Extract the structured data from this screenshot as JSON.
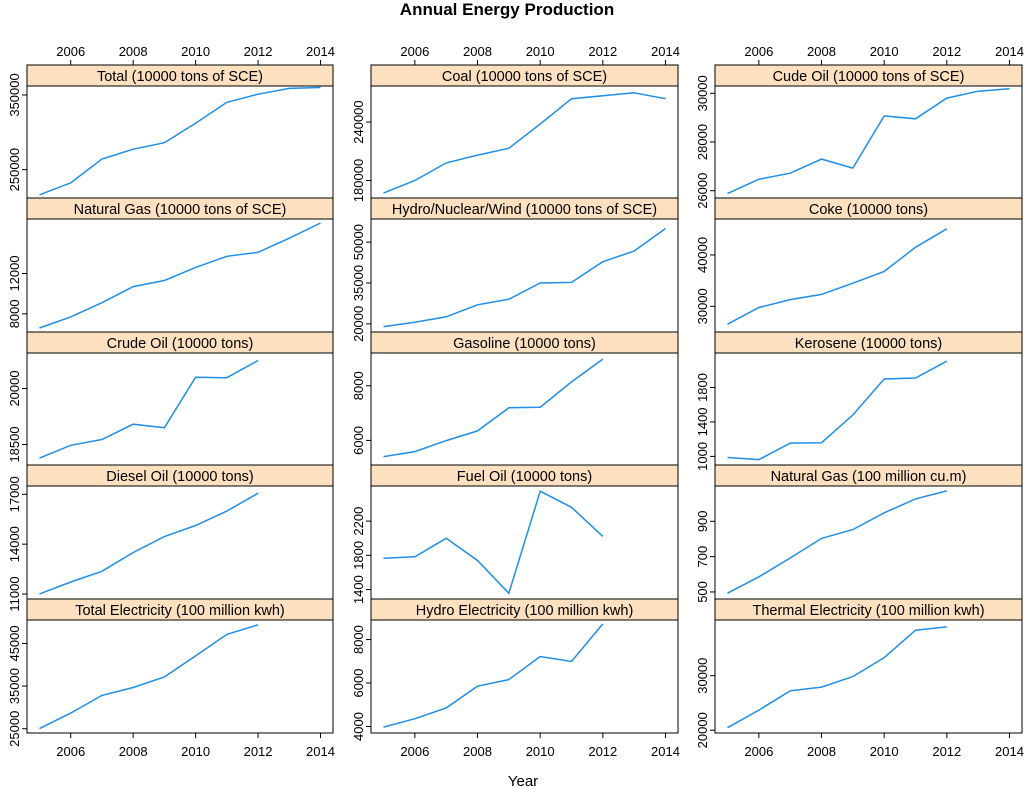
{
  "title": "Annual Energy Production",
  "xlabel": "Year",
  "colors": {
    "line": "#1f8ee6",
    "strip": "#fde0c0",
    "frame": "#000000"
  },
  "x_ticks": [
    2006,
    2008,
    2010,
    2012,
    2014
  ],
  "chart_data": [
    {
      "type": "line",
      "name": "Total (10000 tons of SCE)",
      "x": [
        2005,
        2006,
        2007,
        2008,
        2009,
        2010,
        2011,
        2012,
        2013,
        2014
      ],
      "y": [
        216219,
        232167,
        264173,
        277419,
        286092,
        312125,
        340178,
        351041,
        358784,
        360000
      ],
      "ylim": [
        212000,
        362000
      ],
      "yticks": [
        250000,
        350000
      ]
    },
    {
      "type": "line",
      "name": "Coal (10000 tons of SCE)",
      "x": [
        2005,
        2006,
        2007,
        2008,
        2009,
        2010,
        2011,
        2012,
        2013,
        2014
      ],
      "y": [
        167000,
        180000,
        198000,
        206000,
        213000,
        238000,
        264000,
        267000,
        270000,
        264000
      ],
      "ylim": [
        162000,
        277000
      ],
      "yticks": [
        180000,
        240000
      ]
    },
    {
      "type": "line",
      "name": "Cude Oil (10000 tons of SCE)",
      "x": [
        2005,
        2006,
        2007,
        2008,
        2009,
        2010,
        2011,
        2012,
        2013,
        2014
      ],
      "y": [
        25881,
        26472,
        26720,
        27297,
        26929,
        29071,
        28951,
        29804,
        30087,
        30186
      ],
      "ylim": [
        25700,
        30300
      ],
      "yticks": [
        26000,
        28000,
        30000
      ]
    },
    {
      "type": "line",
      "name": "Natural Gas (10000 tons of SCE)",
      "x": [
        2005,
        2006,
        2007,
        2008,
        2009,
        2010,
        2011,
        2012,
        2013,
        2014
      ],
      "y": [
        6600,
        7700,
        9100,
        10700,
        11300,
        12600,
        13700,
        14100,
        15500,
        17000
      ],
      "ylim": [
        6200,
        17400
      ],
      "yticks": [
        8000,
        12000
      ]
    },
    {
      "type": "line",
      "name": "Hydro/Nuclear/Wind (10000 tons of SCE)",
      "x": [
        2005,
        2006,
        2007,
        2008,
        2009,
        2010,
        2011,
        2012,
        2013,
        2014
      ],
      "y": [
        19000,
        20600,
        22600,
        27000,
        29000,
        35000,
        35200,
        42800,
        46700,
        55000
      ],
      "ylim": [
        17000,
        58500
      ],
      "yticks": [
        20000,
        35000,
        50000
      ]
    },
    {
      "type": "line",
      "name": "Coke (10000 tons)",
      "x": [
        2005,
        2006,
        2007,
        2008,
        2009,
        2010,
        2011,
        2012
      ],
      "y": [
        26512,
        29768,
        31314,
        32314,
        34500,
        36800,
        41500,
        45100
      ],
      "ylim": [
        25000,
        47000
      ],
      "yticks": [
        30000,
        40000
      ]
    },
    {
      "type": "line",
      "name": "Crude Oil (10000 tons)",
      "x": [
        2005,
        2006,
        2007,
        2008,
        2009,
        2010,
        2011,
        2012
      ],
      "y": [
        18135,
        18477,
        18632,
        19044,
        18949,
        20301,
        20288,
        20748
      ],
      "ylim": [
        17950,
        20950
      ],
      "yticks": [
        18500,
        20000
      ]
    },
    {
      "type": "line",
      "name": "Gasoline (10000 tons)",
      "x": [
        2005,
        2006,
        2007,
        2008,
        2009,
        2010,
        2011,
        2012
      ],
      "y": [
        5409,
        5591,
        5993,
        6348,
        7195,
        7217,
        8141,
        8976
      ],
      "ylim": [
        5100,
        9200
      ],
      "yticks": [
        6000,
        8000
      ]
    },
    {
      "type": "line",
      "name": "Kerosene (10000 tons)",
      "x": [
        2005,
        2006,
        2007,
        2008,
        2009,
        2010,
        2011,
        2012
      ],
      "y": [
        987,
        963,
        1154,
        1159,
        1480,
        1898,
        1910,
        2105
      ],
      "ylim": [
        900,
        2200
      ],
      "yticks": [
        1000,
        1400,
        1800
      ]
    },
    {
      "type": "line",
      "name": "Diesel Oil (10000 tons)",
      "x": [
        2005,
        2006,
        2007,
        2008,
        2009,
        2010,
        2011,
        2012
      ],
      "y": [
        11007,
        11724,
        12364,
        13498,
        14455,
        15125,
        15989,
        17064
      ],
      "ylim": [
        10700,
        17500
      ],
      "yticks": [
        11000,
        14000,
        17000
      ]
    },
    {
      "type": "line",
      "name": "Fuel Oil (10000 tons)",
      "x": [
        2005,
        2006,
        2007,
        2008,
        2009,
        2010,
        2011,
        2012
      ],
      "y": [
        1766,
        1783,
        1999,
        1740,
        1357,
        2549,
        2361,
        2021
      ],
      "ylim": [
        1290,
        2610
      ],
      "yticks": [
        1400,
        1800,
        2200
      ]
    },
    {
      "type": "line",
      "name": "Natural Gas (100 million cu.m)",
      "x": [
        2005,
        2006,
        2007,
        2008,
        2009,
        2010,
        2011,
        2012
      ],
      "y": [
        493,
        586,
        692,
        803,
        853,
        948,
        1027,
        1072
      ],
      "ylim": [
        460,
        1100
      ],
      "yticks": [
        500,
        700,
        900
      ]
    },
    {
      "type": "line",
      "name": "Total Electricity (100 million kwh)",
      "x": [
        2005,
        2006,
        2007,
        2008,
        2009,
        2010,
        2011,
        2012
      ],
      "y": [
        25037,
        28657,
        32816,
        34669,
        37147,
        42072,
        47130,
        49378
      ],
      "ylim": [
        24000,
        50500
      ],
      "yticks": [
        25000,
        35000,
        45000
      ]
    },
    {
      "type": "line",
      "name": "Hydro Electricity (100 million kwh)",
      "x": [
        2005,
        2006,
        2007,
        2008,
        2009,
        2010,
        2011,
        2012
      ],
      "y": [
        3970,
        4358,
        4853,
        5852,
        6156,
        7222,
        6990,
        8721
      ],
      "ylim": [
        3700,
        8900
      ],
      "yticks": [
        4000,
        6000,
        8000
      ]
    },
    {
      "type": "line",
      "name": "Thermal Electricity (100 million kwh)",
      "x": [
        2005,
        2006,
        2007,
        2008,
        2009,
        2010,
        2011,
        2012
      ],
      "y": [
        20473,
        23696,
        27229,
        27901,
        29828,
        33319,
        38337,
        38928
      ],
      "ylim": [
        19500,
        40200
      ],
      "yticks": [
        20000,
        30000
      ]
    }
  ]
}
